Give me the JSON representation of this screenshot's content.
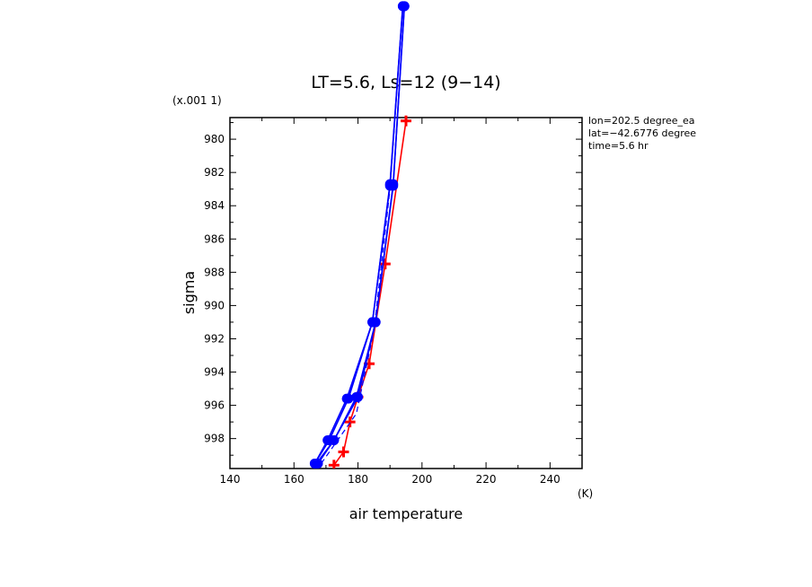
{
  "chart_data": {
    "type": "line",
    "title": "LT=5.6, Ls=12 (9−14)",
    "xlabel": "air temperature",
    "ylabel": "sigma",
    "x_unit": "(K)",
    "y_unit": "(x.001 1)",
    "xlim": [
      140,
      250
    ],
    "ylim": [
      999.8,
      978.7
    ],
    "y_reversed": true,
    "x_ticks": [
      140,
      160,
      180,
      200,
      220,
      240
    ],
    "y_ticks": [
      980,
      982,
      984,
      986,
      988,
      990,
      992,
      994,
      996,
      998
    ],
    "grid": false,
    "annotations": [
      "lon=202.5 degree_ea",
      "lat=−42.6776 degree",
      "time=5.6 hr"
    ],
    "series": [
      {
        "color": "#ff0000",
        "marker": "plus",
        "style": "solid",
        "x": [
          172.5,
          175.5,
          177.5,
          180.0,
          183.5,
          188.5,
          195.0
        ],
        "y": [
          999.6,
          998.8,
          997.0,
          995.5,
          993.5,
          987.5,
          978.9
        ]
      },
      {
        "color": "#0000ff",
        "marker": "circle",
        "style": "solid",
        "x": [
          166.5,
          170.5,
          176.5,
          184.5,
          190.0,
          194.0
        ],
        "y": [
          999.5,
          998.1,
          995.6,
          991.0,
          982.8,
          972.0
        ]
      },
      {
        "color": "#0000ff",
        "marker": "circle",
        "style": "solid",
        "x": [
          167.0,
          172.5,
          179.5,
          185.5,
          191.0,
          194.5
        ],
        "y": [
          999.5,
          998.1,
          995.5,
          991.0,
          982.7,
          972.0
        ]
      },
      {
        "color": "#0000ff",
        "marker": "circle",
        "style": "solid",
        "x": [
          166.5,
          171.0,
          177.0,
          184.5,
          190.0,
          194.0
        ],
        "y": [
          999.5,
          998.1,
          995.6,
          991.0,
          982.7,
          972.0
        ]
      },
      {
        "color": "#0000ff",
        "marker": "circle",
        "style": "solid",
        "x": [
          167.5,
          172.5,
          180.0,
          185.5,
          191.0,
          194.5
        ],
        "y": [
          999.5,
          998.1,
          995.5,
          991.0,
          982.8,
          972.0
        ]
      },
      {
        "color": "#0000ff",
        "marker": "none",
        "style": "dashed",
        "x": [
          168.5,
          174.0,
          179.5,
          185.0,
          190.0,
          194.0
        ],
        "y": [
          999.5,
          998.0,
          996.5,
          991.5,
          983.0,
          972.0
        ]
      }
    ]
  }
}
